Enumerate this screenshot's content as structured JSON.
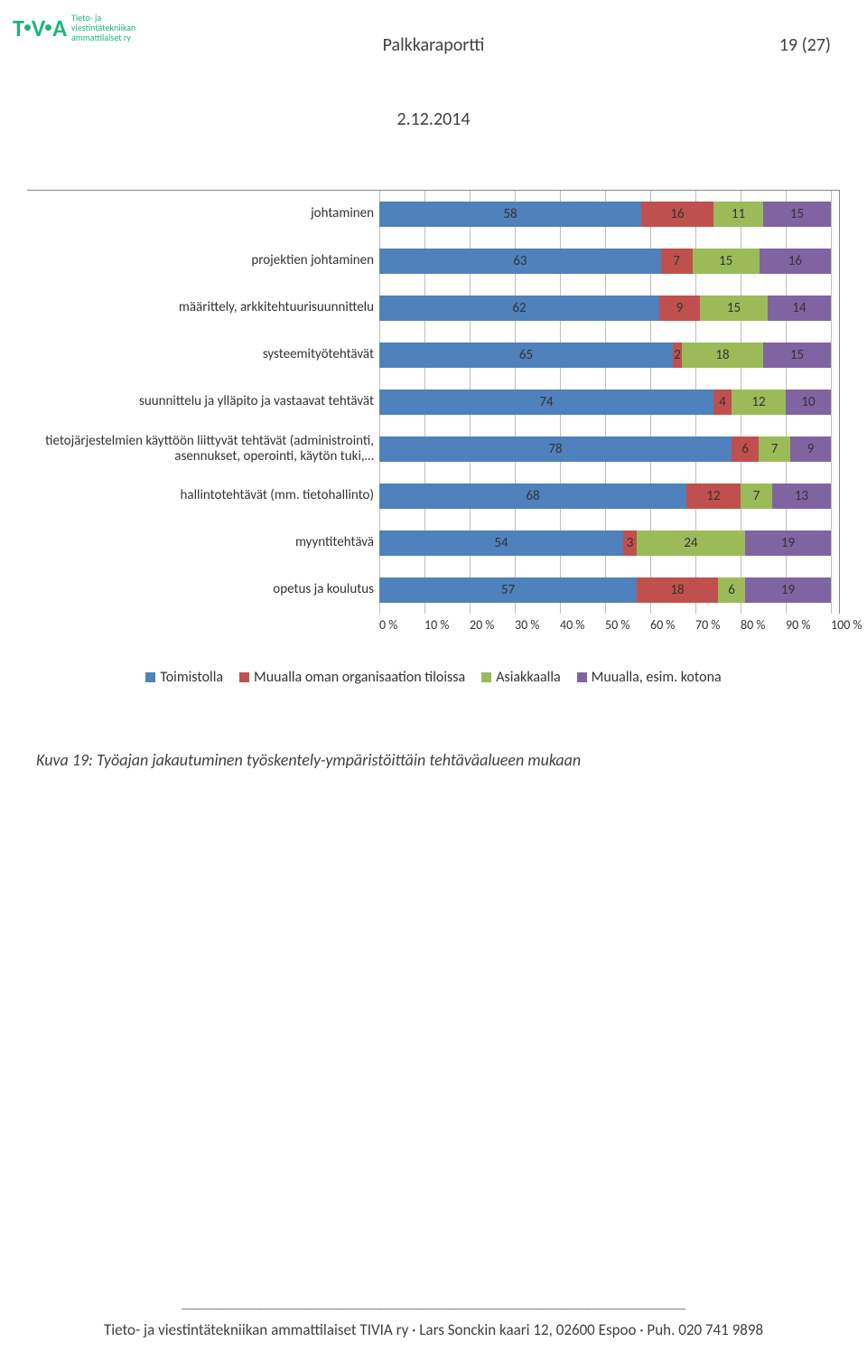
{
  "logo": {
    "brand_left": "T",
    "brand_mid": "V",
    "brand_right": "A",
    "sub_line1": "Tieto- ja",
    "sub_line2": "viestintätekniikan",
    "sub_line3": "ammattilaiset ry"
  },
  "header": {
    "title": "Palkkaraportti",
    "page": "19 (27)",
    "date": "2.12.2014"
  },
  "chart": {
    "type": "stacked-bar-horizontal",
    "xlim": [
      0,
      100
    ],
    "xticks": [
      "0 %",
      "10 %",
      "20 %",
      "30 %",
      "40 %",
      "50 %",
      "60 %",
      "70 %",
      "80 %",
      "90 %",
      "100 %"
    ],
    "series_colors": [
      "#4f81bd",
      "#c0504d",
      "#9bbb59",
      "#8064a2"
    ],
    "label_fontsize": 15,
    "value_fontsize": 15,
    "background_color": "#ffffff",
    "grid_major_color": "#bfbfbf",
    "grid_minor_color": "#e6e6e6",
    "categories": [
      {
        "label": "johtaminen",
        "values": [
          58,
          16,
          11,
          15
        ]
      },
      {
        "label": "projektien johtaminen",
        "values": [
          63,
          7,
          15,
          16
        ]
      },
      {
        "label": "määrittely, arkkitehtuurisuunnittelu",
        "values": [
          62,
          9,
          15,
          14
        ]
      },
      {
        "label": "systeemityötehtävät",
        "values": [
          65,
          2,
          18,
          15
        ]
      },
      {
        "label": "suunnittelu ja ylläpito ja vastaavat tehtävät",
        "values": [
          74,
          4,
          12,
          10
        ]
      },
      {
        "label": "tietojärjestelmien käyttöön liittyvät tehtävät (administrointi, asennukset, operointi, käytön tuki,…",
        "values": [
          78,
          6,
          7,
          9
        ]
      },
      {
        "label": "hallintotehtävät (mm. tietohallinto)",
        "values": [
          68,
          12,
          7,
          13
        ]
      },
      {
        "label": "myyntitehtävä",
        "values": [
          54,
          3,
          24,
          19
        ]
      },
      {
        "label": "opetus ja koulutus",
        "values": [
          57,
          18,
          6,
          19
        ]
      }
    ],
    "legend": [
      {
        "label": "Toimistolla",
        "color": "#4f81bd"
      },
      {
        "label": "Muualla oman organisaation tiloissa",
        "color": "#c0504d"
      },
      {
        "label": "Asiakkaalla",
        "color": "#9bbb59"
      },
      {
        "label": "Muualla, esim. kotona",
        "color": "#8064a2"
      }
    ]
  },
  "caption": "Kuva 19: Työajan jakautuminen työskentely-ympäristöittäin tehtäväalueen mukaan",
  "footer": {
    "line": "________________________________________________________________________________",
    "text": "Tieto- ja viestintätekniikan ammattilaiset TIVIA ry · Lars Sonckin kaari 12, 02600 Espoo · Puh. 020 741 9898"
  }
}
